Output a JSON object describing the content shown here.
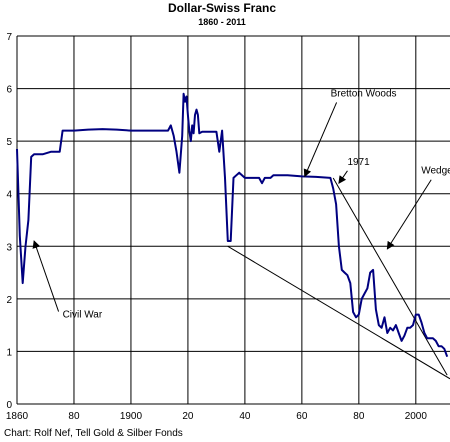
{
  "chart_data": {
    "type": "line",
    "title": "Dollar-Swiss Franc",
    "subtitle": "1860 - 2011",
    "xlabel": "",
    "ylabel": "",
    "xlim": [
      1860,
      2012
    ],
    "ylim": [
      0,
      7
    ],
    "x_ticks": [
      "1860",
      "80",
      "1900",
      "20",
      "40",
      "60",
      "80",
      "2000"
    ],
    "x_tick_values": [
      1860,
      1880,
      1900,
      1920,
      1940,
      1960,
      1980,
      2000
    ],
    "y_ticks": [
      "0",
      "1",
      "2",
      "3",
      "4",
      "5",
      "6",
      "7"
    ],
    "y_tick_values": [
      0,
      1,
      2,
      3,
      4,
      5,
      6,
      7
    ],
    "grid": true,
    "series": [
      {
        "color": "#000080",
        "x": [
          1860,
          1861,
          1862,
          1863,
          1864,
          1865,
          1866,
          1867,
          1869,
          1872,
          1875,
          1876,
          1880,
          1885,
          1890,
          1895,
          1900,
          1905,
          1910,
          1913,
          1914,
          1915,
          1916,
          1917,
          1918,
          1918.5,
          1919,
          1919.5,
          1920,
          1920.5,
          1921,
          1921.5,
          1922,
          1922.5,
          1923,
          1923.5,
          1924,
          1925,
          1926,
          1928,
          1930,
          1931,
          1932,
          1933,
          1934,
          1935,
          1936,
          1937,
          1938,
          1940,
          1945,
          1946,
          1947,
          1948,
          1949,
          1950,
          1955,
          1960,
          1965,
          1970,
          1971,
          1972,
          1973,
          1974,
          1975,
          1976,
          1977,
          1978,
          1979,
          1980,
          1981,
          1982,
          1983,
          1984,
          1985,
          1986,
          1987,
          1988,
          1989,
          1990,
          1991,
          1992,
          1993,
          1994,
          1995,
          1996,
          1997,
          1998,
          1999,
          2000,
          2001,
          2002,
          2003,
          2004,
          2005,
          2006,
          2007,
          2008,
          2009,
          2010,
          2011
        ],
        "y": [
          4.85,
          3.2,
          2.3,
          3.0,
          3.5,
          4.7,
          4.75,
          4.75,
          4.75,
          4.8,
          4.8,
          5.2,
          5.2,
          5.22,
          5.23,
          5.22,
          5.2,
          5.2,
          5.2,
          5.2,
          5.3,
          5.1,
          4.8,
          4.4,
          5.1,
          5.9,
          5.75,
          5.85,
          5.5,
          5.2,
          5.0,
          5.3,
          5.15,
          5.5,
          5.6,
          5.5,
          5.15,
          5.18,
          5.18,
          5.18,
          5.18,
          4.8,
          5.2,
          4.3,
          3.1,
          3.1,
          4.3,
          4.35,
          4.4,
          4.3,
          4.3,
          4.2,
          4.3,
          4.3,
          4.3,
          4.35,
          4.35,
          4.33,
          4.32,
          4.3,
          4.1,
          3.8,
          3.0,
          2.55,
          2.5,
          2.45,
          2.3,
          1.75,
          1.65,
          1.7,
          2.0,
          2.1,
          2.2,
          2.5,
          2.55,
          1.8,
          1.5,
          1.45,
          1.65,
          1.35,
          1.45,
          1.4,
          1.5,
          1.35,
          1.2,
          1.3,
          1.45,
          1.45,
          1.5,
          1.7,
          1.7,
          1.55,
          1.35,
          1.25,
          1.25,
          1.25,
          1.2,
          1.1,
          1.1,
          1.05,
          0.9
        ]
      }
    ],
    "trendlines": [
      {
        "x": [
          1971,
          2011
        ],
        "y": [
          4.3,
          0.55
        ]
      },
      {
        "x": [
          1934,
          2012
        ],
        "y": [
          3.0,
          0.48
        ]
      }
    ],
    "annotations": [
      {
        "text": "Civil War",
        "x": 1876,
        "y": 1.72,
        "arrow_to": [
          1866,
          3.1
        ]
      },
      {
        "text": "Bretton Woods",
        "x": 1975,
        "y": 5.85,
        "arrow_to": [
          1961,
          4.33
        ]
      },
      {
        "text": "1971",
        "x": 1976,
        "y": 4.55,
        "arrow_to": [
          1973,
          4.2
        ]
      },
      {
        "text": "Wedge, Keil",
        "x": 2004,
        "y": 4.38,
        "arrow_to": [
          1990,
          2.95
        ]
      }
    ]
  },
  "footer": {
    "credit": "Chart: Rolf Nef, Tell Gold & Silber Fonds"
  }
}
